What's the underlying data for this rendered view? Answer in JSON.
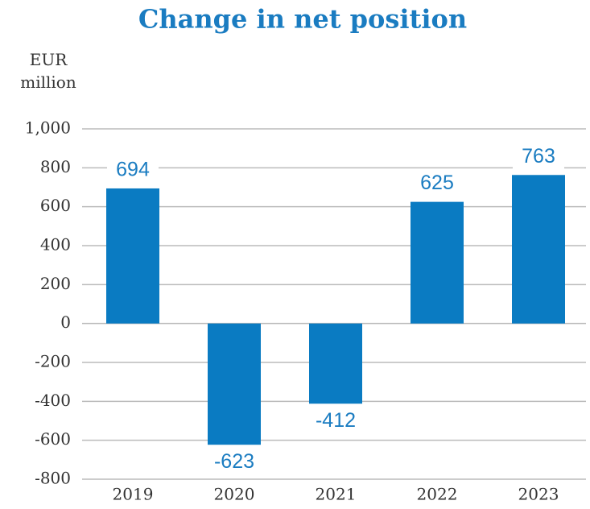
{
  "chart_data": {
    "type": "bar",
    "title": "Change in net position",
    "y_label": "EUR million",
    "categories": [
      "2019",
      "2020",
      "2021",
      "2022",
      "2023"
    ],
    "values": [
      694,
      -623,
      -412,
      625,
      763
    ],
    "color": "#0a7bc2",
    "ylim": [
      -800,
      1000
    ],
    "yticks": [
      {
        "value": 1000,
        "label": "1,000"
      },
      800,
      600,
      400,
      200,
      0,
      -200,
      -400,
      -600,
      -800
    ],
    "grid": true
  }
}
